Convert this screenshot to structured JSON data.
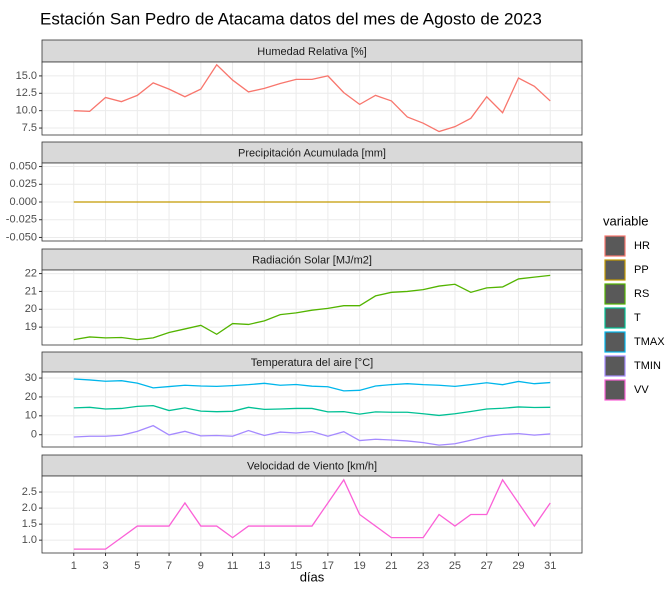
{
  "chart_data": {
    "type": "line",
    "title": "Estación San Pedro de Atacama datos del mes de Agosto de 2023",
    "x_label": "días",
    "legend_title": "variable",
    "grid": true,
    "x": [
      1,
      2,
      3,
      4,
      5,
      6,
      7,
      8,
      9,
      10,
      11,
      12,
      13,
      14,
      15,
      16,
      17,
      18,
      19,
      20,
      21,
      22,
      23,
      24,
      25,
      26,
      27,
      28,
      29,
      30,
      31
    ],
    "xlim": [
      -1,
      33
    ],
    "xticks": [
      1,
      3,
      5,
      7,
      9,
      11,
      13,
      15,
      17,
      19,
      21,
      23,
      25,
      27,
      29,
      31
    ],
    "panels": [
      {
        "strip": "Humedad Relativa [%]",
        "ylim": [
          6.5,
          17.0
        ],
        "yticks": [
          7.5,
          {
            "value": 10,
            "label": "10.0"
          },
          12.5,
          {
            "value": 15,
            "label": "15.0"
          }
        ],
        "series": [
          {
            "name": "HR",
            "color": "#F8766D",
            "values": [
              10.0,
              9.9,
              11.9,
              11.3,
              12.2,
              14.0,
              13.1,
              12.0,
              13.1,
              16.6,
              14.4,
              12.7,
              13.2,
              13.9,
              14.5,
              14.5,
              15.0,
              12.6,
              10.9,
              12.2,
              11.4,
              9.1,
              8.2,
              7.0,
              7.7,
              8.9,
              12.0,
              9.7,
              14.7,
              13.5,
              11.4
            ]
          }
        ]
      },
      {
        "strip": "Precipitación Acumulada [mm]",
        "ylim": [
          -0.055,
          0.055
        ],
        "yticks": [
          {
            "value": -0.05,
            "label": "-0.050"
          },
          {
            "value": -0.025,
            "label": "-0.025"
          },
          {
            "value": 0,
            "label": "0.000"
          },
          {
            "value": 0.025,
            "label": "0.025"
          },
          {
            "value": 0.05,
            "label": "0.050"
          }
        ],
        "series": [
          {
            "name": "PP",
            "color": "#C49A00",
            "values": [
              0,
              0,
              0,
              0,
              0,
              0,
              0,
              0,
              0,
              0,
              0,
              0,
              0,
              0,
              0,
              0,
              0,
              0,
              0,
              0,
              0,
              0,
              0,
              0,
              0,
              0,
              0,
              0,
              0,
              0,
              0
            ]
          }
        ]
      },
      {
        "strip": "Radiación Solar [MJ/m2]",
        "ylim": [
          18.0,
          22.2
        ],
        "yticks": [
          19,
          20,
          21,
          22
        ],
        "series": [
          {
            "name": "RS",
            "color": "#53B400",
            "values": [
              18.3,
              18.45,
              18.4,
              18.42,
              18.3,
              18.4,
              18.7,
              18.9,
              19.1,
              18.6,
              19.2,
              19.15,
              19.35,
              19.7,
              19.8,
              19.95,
              20.05,
              20.2,
              20.2,
              20.75,
              20.95,
              21.0,
              21.1,
              21.3,
              21.4,
              20.95,
              21.2,
              21.25,
              21.7,
              21.8,
              21.9
            ]
          }
        ]
      },
      {
        "strip": "Temperatura del aire [°C]",
        "ylim": [
          -6.5,
          33.2
        ],
        "yticks": [
          0,
          10,
          20,
          30
        ],
        "series": [
          {
            "name": "T",
            "color": "#00C094",
            "values": [
              14.2,
              14.5,
              13.6,
              13.9,
              15.0,
              15.4,
              12.8,
              14.2,
              12.5,
              12.2,
              12.4,
              14.5,
              13.4,
              13.6,
              13.9,
              13.9,
              12.1,
              12.2,
              10.9,
              12.1,
              11.9,
              11.9,
              11.1,
              10.2,
              11.1,
              12.3,
              13.6,
              14.0,
              14.7,
              14.4,
              14.5
            ]
          },
          {
            "name": "TMAX",
            "color": "#00B6EB",
            "values": [
              29.5,
              29.0,
              28.3,
              28.6,
              27.3,
              24.8,
              25.5,
              26.2,
              25.8,
              25.6,
              26.0,
              26.5,
              27.2,
              26.2,
              26.6,
              25.7,
              25.4,
              23.2,
              23.5,
              25.8,
              26.5,
              27.0,
              26.5,
              26.2,
              25.6,
              26.5,
              27.5,
              26.5,
              28.2,
              27.0,
              27.6
            ]
          },
          {
            "name": "TMIN",
            "color": "#A58AFF",
            "values": [
              -1.2,
              -0.8,
              -0.8,
              -0.3,
              1.8,
              4.8,
              -0.1,
              1.8,
              -0.6,
              -0.4,
              -0.8,
              2.2,
              -0.4,
              1.4,
              0.9,
              1.7,
              -0.8,
              1.6,
              -3.1,
              -2.4,
              -2.8,
              -3.3,
              -4.2,
              -5.5,
              -4.8,
              -2.9,
              -0.9,
              0.1,
              0.6,
              -0.2,
              0.4
            ]
          }
        ]
      },
      {
        "strip": "Velocidad de Viento [km/h]",
        "ylim": [
          0.6,
          3.0
        ],
        "yticks": [
          {
            "value": 1,
            "label": "1.0"
          },
          1.5,
          {
            "value": 2,
            "label": "2.0"
          },
          2.5
        ],
        "series": [
          {
            "name": "VV",
            "color": "#FB61D7",
            "values": [
              0.72,
              0.72,
              0.72,
              1.08,
              1.44,
              1.44,
              1.44,
              2.16,
              1.44,
              1.44,
              1.08,
              1.44,
              1.44,
              1.44,
              1.44,
              1.44,
              2.16,
              2.88,
              1.8,
              1.44,
              1.08,
              1.08,
              1.08,
              1.8,
              1.44,
              1.8,
              1.8,
              2.88,
              2.16,
              1.44,
              2.16
            ]
          }
        ]
      }
    ]
  }
}
